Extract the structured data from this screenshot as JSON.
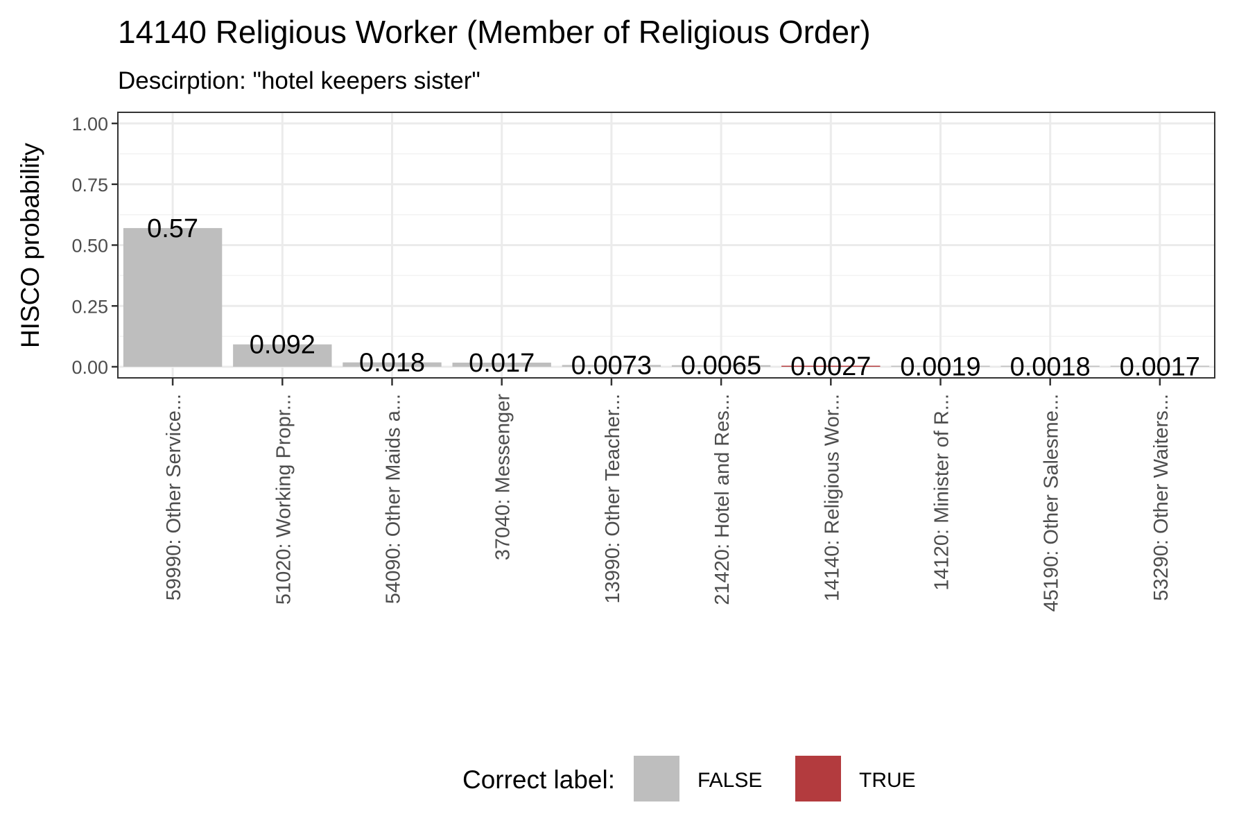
{
  "chart_data": {
    "type": "bar",
    "title": "14140 Religious Worker (Member of Religious Order)",
    "subtitle": "Descirption: \"hotel keepers sister\"",
    "xlabel": "",
    "ylabel": "HISCO probability",
    "ylim": [
      0,
      1
    ],
    "yticks": [
      "0.00",
      "0.25",
      "0.50",
      "0.75",
      "1.00"
    ],
    "grid": true,
    "categories": [
      "59990: Other Service...",
      "51020: Working Propr...",
      "54090: Other Maids a...",
      "37040: Messenger",
      "13990: Other Teacher...",
      "21420: Hotel and Res...",
      "14140: Religious Wor...",
      "14120: Minister of R...",
      "45190: Other Salesme...",
      "53290: Other Waiters..."
    ],
    "values": [
      0.57,
      0.092,
      0.018,
      0.017,
      0.0073,
      0.0065,
      0.0027,
      0.0019,
      0.0018,
      0.0017
    ],
    "labels": [
      "0.57",
      "0.092",
      "0.018",
      "0.017",
      "0.0073",
      "0.0065",
      "0.0027",
      "0.0019",
      "0.0018",
      "0.0017"
    ],
    "correct": [
      false,
      false,
      false,
      false,
      false,
      false,
      true,
      false,
      false,
      false
    ],
    "legend": {
      "title": "Correct label:",
      "position": "bottom",
      "items": [
        {
          "label": "FALSE",
          "color": "#bebebe"
        },
        {
          "label": "TRUE",
          "color": "#b33b3e"
        }
      ]
    },
    "colors": {
      "false": "#bebebe",
      "true": "#b33b3e"
    }
  }
}
